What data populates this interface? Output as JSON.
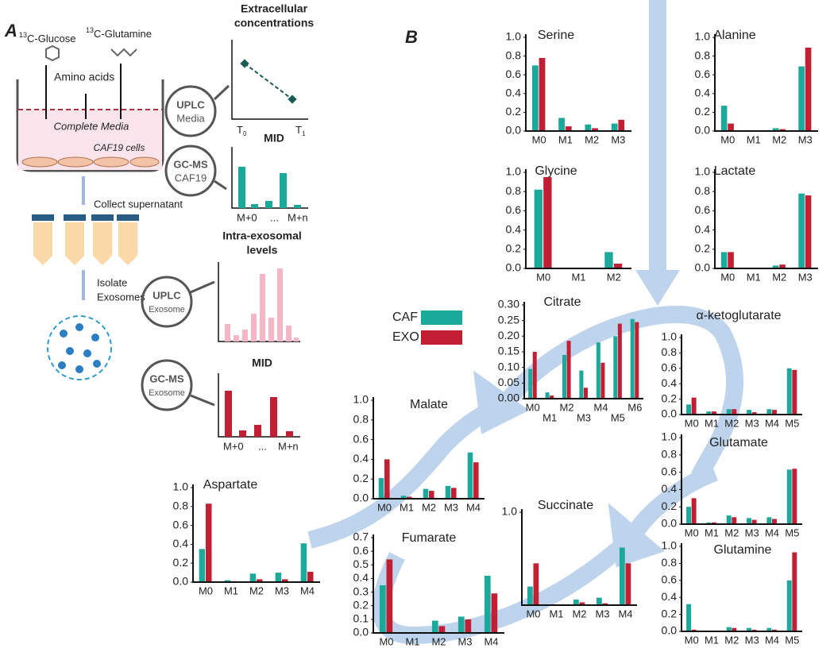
{
  "legend": {
    "series": [
      {
        "name": "CAF",
        "color": "#1aa99a"
      },
      {
        "name": "EXO",
        "color": "#c11f33"
      }
    ]
  },
  "diagram": {
    "panel_a": "A",
    "panel_b": "B",
    "glucose": {
      "sup": "13",
      "text": "C-Glucose"
    },
    "glutamine": {
      "sup": "13",
      "text": "C-Glutamine"
    },
    "amino_acids": "Amino acids",
    "media": "Complete Media",
    "cells": "CAF19 cells",
    "uplc_media": [
      "UPLC",
      "Media"
    ],
    "gcms_caf": [
      "GC-MS",
      "CAF19"
    ],
    "extracellular": [
      "Extracellular",
      "concentrations"
    ],
    "t0": {
      "text": "T",
      "sub": "0"
    },
    "t1": {
      "text": "T",
      "sub": "1"
    },
    "mid1": {
      "title": "MID",
      "left": "M+0",
      "mid": "...",
      "right": "M+n"
    },
    "collect": "Collect supernatant",
    "isolate": [
      "Isolate",
      "Exosomes"
    ],
    "intra": [
      "Intra-exosomal",
      "levels"
    ],
    "uplc_exo": [
      "UPLC",
      "Exosome"
    ],
    "gcms_exo": [
      "GC-MS",
      "Exosome"
    ],
    "mid2": {
      "title": "MID",
      "left": "M+0",
      "mid": "...",
      "right": "M+n"
    }
  },
  "chart_data": [
    {
      "type": "bar",
      "title": "Serine",
      "categories": [
        "M0",
        "M1",
        "M2",
        "M3"
      ],
      "series": [
        {
          "values": [
            0.7,
            0.14,
            0.07,
            0.08
          ]
        },
        {
          "values": [
            0.78,
            0.05,
            0.03,
            0.12
          ]
        }
      ],
      "ylim": [
        0,
        1
      ],
      "yticks": [
        {
          "value": 0,
          "label": "0.0"
        },
        0.2,
        0.4,
        0.6,
        0.8,
        {
          "value": 1,
          "label": "1.0"
        }
      ]
    },
    {
      "type": "bar",
      "title": "Alanine",
      "categories": [
        "M0",
        "M1",
        "M2",
        "M3"
      ],
      "series": [
        {
          "values": [
            0.27,
            0,
            0.03,
            0.69
          ]
        },
        {
          "values": [
            0.08,
            0,
            0.02,
            0.89
          ]
        }
      ],
      "ylim": [
        0,
        1
      ],
      "yticks": [
        {
          "value": 0,
          "label": "0.0"
        },
        0.2,
        0.4,
        0.6,
        0.8,
        {
          "value": 1,
          "label": "1.0"
        }
      ]
    },
    {
      "type": "bar",
      "title": "Glycine",
      "categories": [
        "M0",
        "M1",
        "M2"
      ],
      "series": [
        {
          "values": [
            0.82,
            0,
            0.17
          ]
        },
        {
          "values": [
            0.95,
            0,
            0.05
          ]
        }
      ],
      "ylim": [
        0,
        1
      ],
      "yticks": [
        {
          "value": 0,
          "label": "0.0"
        },
        0.2,
        0.4,
        0.6,
        0.8,
        {
          "value": 1,
          "label": "1.0"
        }
      ]
    },
    {
      "type": "bar",
      "title": "Lactate",
      "categories": [
        "M0",
        "M1",
        "M2",
        "M3"
      ],
      "series": [
        {
          "values": [
            0.17,
            0,
            0.03,
            0.78
          ]
        },
        {
          "values": [
            0.17,
            0,
            0.04,
            0.76
          ]
        }
      ],
      "ylim": [
        0,
        1
      ],
      "yticks": [
        {
          "value": 0,
          "label": "0.0"
        },
        0.2,
        0.4,
        0.6,
        0.8,
        {
          "value": 1,
          "label": "1.0"
        }
      ]
    },
    {
      "type": "bar",
      "title": "Citrate",
      "categories": [
        "M0",
        "M1",
        "M2",
        "M3",
        "M4",
        "M5",
        "M6"
      ],
      "series": [
        {
          "values": [
            0.095,
            0.02,
            0.14,
            0.09,
            0.18,
            0.2,
            0.255
          ]
        },
        {
          "values": [
            0.15,
            0.01,
            0.185,
            0.035,
            0.115,
            0.24,
            0.245
          ]
        }
      ],
      "ylim": [
        0,
        0.3
      ],
      "yticks": [
        {
          "value": 0,
          "label": "0.00"
        },
        0.05,
        {
          "value": 0.1,
          "label": "0.10"
        },
        0.15,
        {
          "value": 0.2,
          "label": "0.20"
        },
        0.25,
        {
          "value": 0.3,
          "label": "0.30"
        }
      ]
    },
    {
      "type": "bar",
      "title": "α-ketoglutarate",
      "categories": [
        "M0",
        "M1",
        "M2",
        "M3",
        "M4",
        "M5"
      ],
      "series": [
        {
          "values": [
            0.13,
            0.04,
            0.07,
            0.06,
            0.07,
            0.6
          ]
        },
        {
          "values": [
            0.22,
            0.04,
            0.07,
            0.03,
            0.06,
            0.58
          ]
        }
      ],
      "ylim": [
        0,
        1
      ],
      "yticks": [
        {
          "value": 0,
          "label": "0.0"
        },
        0.2,
        0.4,
        0.6,
        0.8,
        {
          "value": 1,
          "label": "1.0"
        }
      ]
    },
    {
      "type": "bar",
      "title": "Glutamate",
      "categories": [
        "M0",
        "M1",
        "M2",
        "M3",
        "M4",
        "M5"
      ],
      "series": [
        {
          "values": [
            0.2,
            0.02,
            0.1,
            0.07,
            0.08,
            0.63
          ]
        },
        {
          "values": [
            0.3,
            0.02,
            0.08,
            0.05,
            0.06,
            0.64
          ]
        }
      ],
      "ylim": [
        0,
        1
      ],
      "yticks": [
        {
          "value": 0,
          "label": "0.0"
        },
        0.2,
        0.4,
        0.6,
        0.8,
        {
          "value": 1,
          "label": "1.0"
        }
      ]
    },
    {
      "type": "bar",
      "title": "Glutamine",
      "categories": [
        "M0",
        "M1",
        "M2",
        "M3",
        "M4",
        "M5"
      ],
      "series": [
        {
          "values": [
            0.32,
            0,
            0.05,
            0.04,
            0.04,
            0.6
          ]
        },
        {
          "values": [
            0.02,
            0,
            0.04,
            0.02,
            0.02,
            0.93
          ]
        }
      ],
      "ylim": [
        0,
        1
      ],
      "yticks": [
        {
          "value": 0,
          "label": "0.0"
        },
        0.2,
        0.4,
        0.6,
        0.8,
        {
          "value": 1,
          "label": "1.0"
        }
      ]
    },
    {
      "type": "bar",
      "title": "Malate",
      "categories": [
        "M0",
        "M1",
        "M2",
        "M3",
        "M4"
      ],
      "series": [
        {
          "values": [
            0.21,
            0.03,
            0.1,
            0.13,
            0.47
          ]
        },
        {
          "values": [
            0.4,
            0.02,
            0.08,
            0.11,
            0.37
          ]
        }
      ],
      "ylim": [
        0,
        1
      ],
      "yticks": [
        {
          "value": 0,
          "label": "0.0"
        },
        0.2,
        0.4,
        0.6,
        0.8,
        {
          "value": 1,
          "label": "1.0"
        }
      ]
    },
    {
      "type": "bar",
      "title": "Aspartate",
      "categories": [
        "M0",
        "M1",
        "M2",
        "M3",
        "M4"
      ],
      "series": [
        {
          "values": [
            0.35,
            0.02,
            0.09,
            0.1,
            0.41
          ]
        },
        {
          "values": [
            0.83,
            0.01,
            0.03,
            0.03,
            0.11
          ]
        }
      ],
      "ylim": [
        0,
        1
      ],
      "yticks": [
        {
          "value": 0,
          "label": "0.0"
        },
        0.2,
        0.4,
        0.6,
        0.8,
        {
          "value": 1,
          "label": "1.0"
        }
      ]
    },
    {
      "type": "bar",
      "title": "Fumarate",
      "categories": [
        "M0",
        "M1",
        "M2",
        "M3",
        "M4"
      ],
      "series": [
        {
          "values": [
            0.35,
            0,
            0.09,
            0.12,
            0.42
          ]
        },
        {
          "values": [
            0.54,
            0,
            0.05,
            0.1,
            0.29
          ]
        }
      ],
      "ylim": [
        0,
        0.7
      ],
      "yticks": [
        {
          "value": 0,
          "label": "0.0"
        },
        0.1,
        0.2,
        0.3,
        0.4,
        0.5,
        0.6,
        0.7
      ]
    },
    {
      "type": "bar",
      "title": "Succinate",
      "categories": [
        "M0",
        "M1",
        "M2",
        "M3",
        "M4"
      ],
      "series": [
        {
          "values": [
            0.2,
            0,
            0.06,
            0.08,
            0.62
          ]
        },
        {
          "values": [
            0.45,
            0,
            0.03,
            0.02,
            0.45
          ]
        }
      ],
      "ylim": [
        0,
        1
      ],
      "yticks": [
        {
          "value": 1,
          "label": "1.0"
        }
      ]
    }
  ]
}
